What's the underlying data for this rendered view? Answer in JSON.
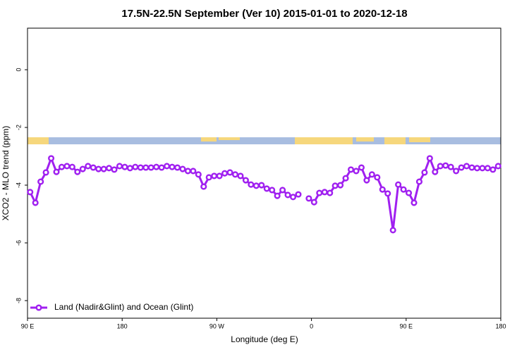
{
  "chart_data": {
    "type": "line",
    "title": "17.5N-22.5N September (Ver 10)   2015-01-01 to 2020-12-18",
    "x_label": "Longitude (deg E)",
    "y_label": "XCO2 - MLO trend (ppm)",
    "x": [
      92.5,
      97.5,
      102.5,
      107.5,
      112.5,
      117.5,
      122.5,
      127.5,
      132.5,
      137.5,
      142.5,
      147.5,
      152.5,
      157.5,
      162.5,
      167.5,
      172.5,
      177.5,
      182.5,
      187.5,
      192.5,
      197.5,
      202.5,
      207.5,
      212.5,
      217.5,
      222.5,
      227.5,
      232.5,
      237.5,
      242.5,
      247.5,
      252.5,
      257.5,
      262.5,
      267.5,
      272.5,
      277.5,
      282.5,
      287.5,
      292.5,
      297.5,
      302.5,
      307.5,
      312.5,
      317.5,
      322.5,
      327.5,
      332.5,
      337.5,
      342.5,
      347.5,
      352.5,
      357.5,
      362.5,
      367.5,
      372.5,
      377.5,
      382.5,
      387.5,
      392.5,
      397.5,
      402.5,
      407.5,
      412.5,
      417.5,
      422.5,
      427.5,
      432.5,
      437.5,
      442.5,
      447.5,
      452.5,
      457.5,
      462.5,
      467.5,
      472.5,
      477.5,
      482.5,
      487.5,
      492.5,
      497.5,
      502.5,
      507.5,
      512.5,
      517.5,
      522.5,
      527.5,
      532.5,
      537.5
    ],
    "series": [
      {
        "name": "Land (Nadir&Glint) and Ocean (Glint)",
        "color": "#a020f0",
        "values": [
          -4.24,
          -4.61,
          -3.88,
          -3.56,
          -3.07,
          -3.54,
          -3.37,
          -3.34,
          -3.37,
          -3.54,
          -3.44,
          -3.34,
          -3.39,
          -3.44,
          -3.44,
          -3.41,
          -3.46,
          -3.34,
          -3.37,
          -3.41,
          -3.37,
          -3.39,
          -3.39,
          -3.39,
          -3.37,
          -3.39,
          -3.34,
          -3.37,
          -3.39,
          -3.44,
          -3.51,
          -3.51,
          -3.63,
          -4.05,
          -3.73,
          -3.68,
          -3.68,
          -3.59,
          -3.56,
          -3.63,
          -3.68,
          -3.83,
          -3.98,
          -4.02,
          -4.0,
          -4.12,
          -4.17,
          -4.37,
          -4.17,
          -4.34,
          -4.41,
          -4.32,
          null,
          -4.46,
          -4.59,
          -4.27,
          -4.24,
          -4.27,
          -4.02,
          -4.0,
          -3.76,
          -3.46,
          -3.51,
          -3.39,
          -3.83,
          -3.63,
          -3.73,
          -4.15,
          -4.29,
          -5.56,
          -3.98,
          -4.15,
          -4.27,
          -4.61,
          -3.88,
          -3.56,
          -3.07,
          -3.54,
          -3.34,
          -3.32,
          -3.37,
          -3.51,
          -3.39,
          -3.34,
          -3.39,
          -3.41,
          -3.41,
          -3.41,
          -3.46,
          -3.34
        ]
      }
    ],
    "xlim": [
      90,
      540
    ],
    "xticks": [
      {
        "value": 90,
        "label": "90 E"
      },
      180,
      {
        "value": 270,
        "label": "90 W"
      },
      {
        "value": 360,
        "label": "0"
      },
      {
        "value": 450,
        "label": "90 E"
      },
      {
        "value": 540,
        "label": "180"
      }
    ],
    "ylim": [
      -8.61,
      1.44
    ],
    "yticks": [
      0,
      -2,
      -4,
      -6,
      -8
    ],
    "legend": "bottom-left"
  }
}
